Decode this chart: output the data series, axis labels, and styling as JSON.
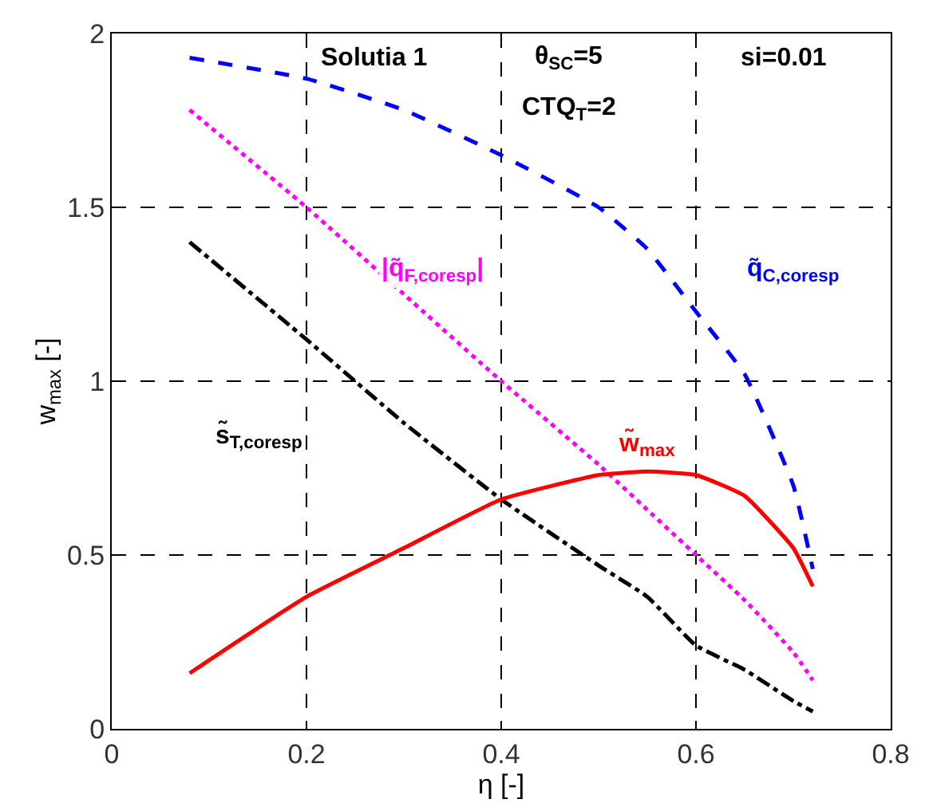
{
  "chart_data": {
    "type": "line",
    "xlabel": "η [-]",
    "ylabel": "w$_{max}$ [-]",
    "x": [
      0.08,
      0.2,
      0.3,
      0.4,
      0.5,
      0.55,
      0.6,
      0.65,
      0.7,
      0.72
    ],
    "series": [
      {
        "color": "#0000ff",
        "line_style": "dashed",
        "values": [
          1.93,
          1.87,
          1.78,
          1.65,
          1.5,
          1.38,
          1.2,
          1.02,
          0.7,
          0.46
        ]
      },
      {
        "color": "#ff00ff",
        "line_style": "dotted",
        "values": [
          1.78,
          1.5,
          1.25,
          1.0,
          0.76,
          0.63,
          0.5,
          0.37,
          0.22,
          0.14
        ]
      },
      {
        "color": "#000000",
        "line_style": "dashdot",
        "values": [
          1.4,
          1.12,
          0.88,
          0.66,
          0.47,
          0.38,
          0.24,
          0.17,
          0.08,
          0.05
        ]
      },
      {
        "color": "#ff0000",
        "line_style": "solid",
        "values": [
          0.16,
          0.38,
          0.52,
          0.66,
          0.73,
          0.74,
          0.73,
          0.67,
          0.52,
          0.41
        ]
      }
    ],
    "xlim": [
      0,
      0.8
    ],
    "ylim": [
      0,
      2
    ],
    "xticks": [
      0,
      0.2,
      0.4,
      0.6,
      0.8
    ],
    "yticks": [
      0,
      0.5,
      1,
      1.5,
      2
    ],
    "grid": true,
    "annotations": [
      "Solutia 1",
      "θ$_{SC}$=5",
      "CTQ$_{T}$=2",
      "si=0.01",
      "|q̃$_{F,coresp}$|",
      "q̃$_{C,coresp}$",
      "s̃$_{T,coresp}$",
      "w̃$_{max}$"
    ]
  }
}
